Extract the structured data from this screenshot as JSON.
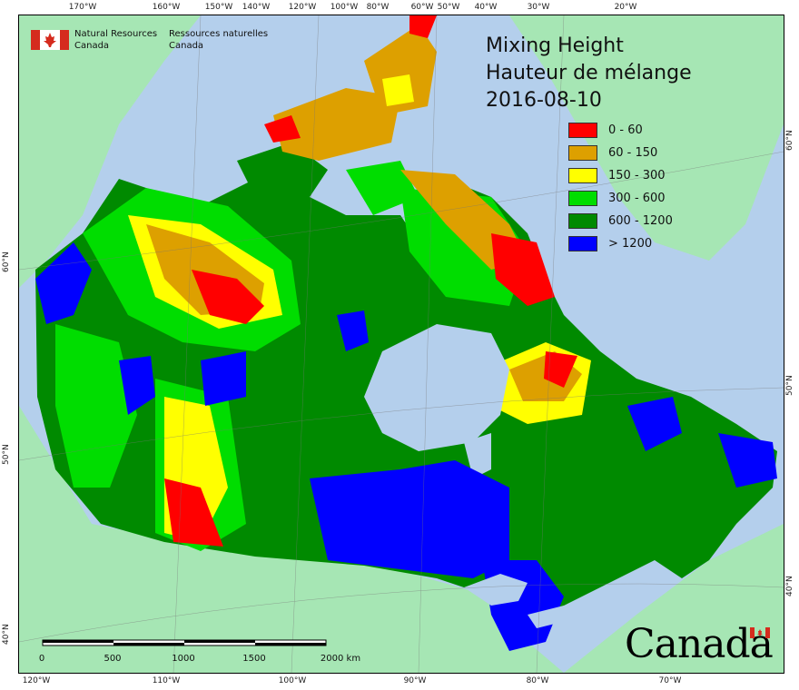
{
  "agency": {
    "english_line1": "Natural Resources",
    "english_line2": "Canada",
    "french_line1": "Ressources naturelles",
    "french_line2": "Canada"
  },
  "title": {
    "line1": "Mixing Height",
    "line2": "Hauteur de mélange",
    "date": "2016-08-10"
  },
  "legend": [
    {
      "label": "0 - 60",
      "color": "#ff0000"
    },
    {
      "label": "60 - 150",
      "color": "#dda000"
    },
    {
      "label": "150 - 300",
      "color": "#ffff00"
    },
    {
      "label": "300 - 600",
      "color": "#00dd00"
    },
    {
      "label": "600 - 1200",
      "color": "#008a00"
    },
    {
      "label": "> 1200",
      "color": "#0000ff"
    }
  ],
  "graticule": {
    "top": [
      "170°W",
      "160°W",
      "150°W",
      "140°W",
      "120°W",
      "100°W",
      "80°W",
      "60°W",
      "50°W",
      "40°W",
      "30°W",
      "20°W"
    ],
    "bottom": [
      "120°W",
      "110°W",
      "100°W",
      "90°W",
      "80°W",
      "70°W"
    ],
    "left": [
      "60°N",
      "50°N",
      "40°N"
    ],
    "right": [
      "60°N",
      "50°N",
      "40°N"
    ]
  },
  "scale_bar": {
    "labels": [
      "0",
      "500",
      "1000",
      "1500",
      "2000  km"
    ]
  },
  "wordmark": "Canada",
  "colors": {
    "ocean": "#b4cfec",
    "foreign_land": "#a6e6b4"
  }
}
